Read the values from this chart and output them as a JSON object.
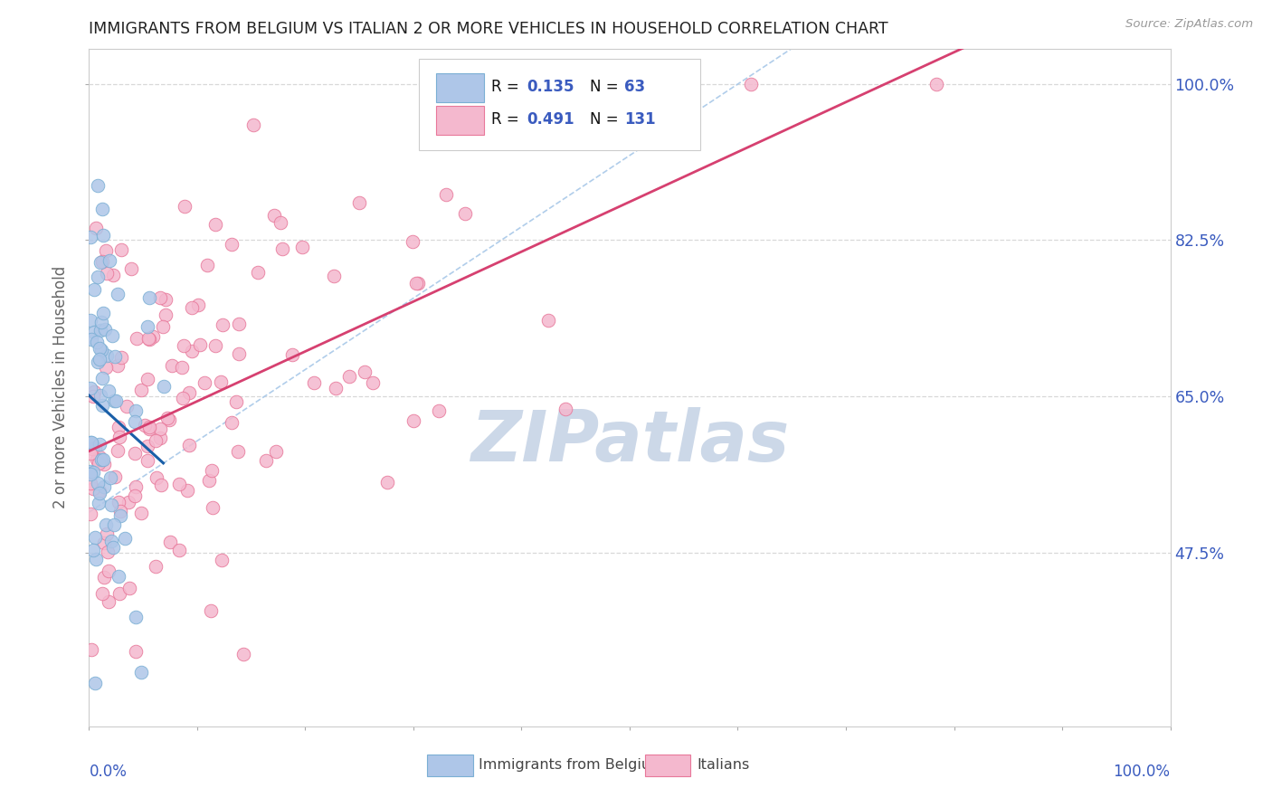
{
  "title": "IMMIGRANTS FROM BELGIUM VS ITALIAN 2 OR MORE VEHICLES IN HOUSEHOLD CORRELATION CHART",
  "source": "Source: ZipAtlas.com",
  "ylabel": "2 or more Vehicles in Household",
  "belgium_color": "#aec6e8",
  "italian_color": "#f4b8ce",
  "belgium_edge": "#7bafd4",
  "italian_edge": "#e8789a",
  "trend_belgium_color": "#1a5fa8",
  "trend_italian_color": "#d64070",
  "watermark_color": "#ccd8e8",
  "axis_color": "#3a5bbf",
  "grid_color": "#d8d8d8",
  "title_color": "#222222",
  "legend_r_color_bel": "#3a5bbf",
  "legend_r_color_ita": "#3a5bbf",
  "legend_n_color_bel": "#3a5bbf",
  "legend_n_color_ita": "#3a5bbf",
  "ytick_vals": [
    0.475,
    0.65,
    0.825,
    1.0
  ],
  "ytick_labels": [
    "47.5%",
    "65.0%",
    "82.5%",
    "100.0%"
  ],
  "ymin": 0.28,
  "ymax": 1.04
}
